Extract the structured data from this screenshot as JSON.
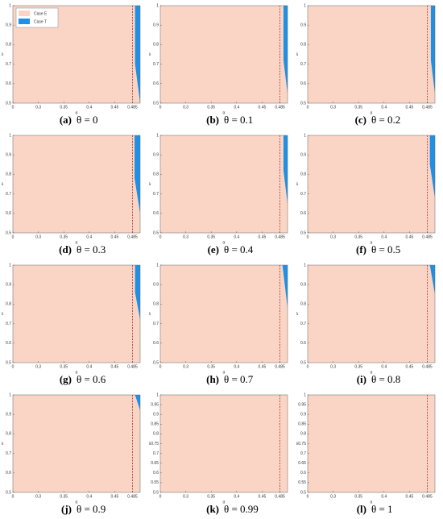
{
  "chart_data": [
    {
      "type": "region",
      "label": "(a)",
      "caption": "θ = 0",
      "xlabel": "α",
      "ylabel": "λ",
      "legend": [
        "Case E",
        "Case T"
      ],
      "region_colors": [
        "#fad5c5",
        "#1e90e6"
      ],
      "vline": 0.485,
      "vline_color": "#a0362a",
      "xlim": [
        0.25,
        0.5
      ],
      "xticks": [
        {
          "value": 0.25,
          "label": "0"
        },
        0.3,
        0.35,
        0.4,
        0.45,
        0.485
      ],
      "ylim": [
        0.5,
        1
      ],
      "yticks": [
        0.5,
        0.6,
        0.7,
        0.8,
        0.9,
        1
      ],
      "region_t": {
        "x": [
          0.49,
          0.49,
          0.5
        ],
        "y": [
          1,
          0.7,
          0.5
        ]
      }
    },
    {
      "type": "region",
      "label": "(b)",
      "caption": "θ = 0.1",
      "xlabel": "α",
      "ylabel": "λ",
      "region_colors": [
        "#fad5c5",
        "#1e90e6"
      ],
      "vline": 0.485,
      "vline_color": "#a0362a",
      "xlim": [
        0.25,
        0.5
      ],
      "xticks": [
        {
          "value": 0.25,
          "label": "0"
        },
        0.3,
        0.35,
        0.4,
        0.45,
        0.485
      ],
      "ylim": [
        0.5,
        1
      ],
      "yticks": [
        0.5,
        0.6,
        0.7,
        0.8,
        0.9,
        1
      ],
      "region_t": {
        "x": [
          0.492,
          0.492,
          0.5
        ],
        "y": [
          1,
          0.72,
          0.55
        ]
      }
    },
    {
      "type": "region",
      "label": "(c)",
      "caption": "θ = 0.2",
      "xlabel": "α",
      "ylabel": "λ",
      "region_colors": [
        "#fad5c5",
        "#1e90e6"
      ],
      "vline": 0.485,
      "vline_color": "#a0362a",
      "xlim": [
        0.25,
        0.5
      ],
      "xticks": [
        {
          "value": 0.25,
          "label": "0"
        },
        0.3,
        0.35,
        0.4,
        0.45,
        0.485
      ],
      "ylim": [
        0.5,
        1
      ],
      "yticks": [
        0.5,
        0.6,
        0.7,
        0.8,
        0.9,
        1
      ],
      "region_t": {
        "x": [
          0.492,
          0.492,
          0.5
        ],
        "y": [
          1,
          0.72,
          0.55
        ]
      }
    },
    {
      "type": "region",
      "label": "(d)",
      "caption": "θ = 0.3",
      "xlabel": "α",
      "ylabel": "λ",
      "region_colors": [
        "#fad5c5",
        "#1e90e6"
      ],
      "vline": 0.485,
      "vline_color": "#a0362a",
      "xlim": [
        0.25,
        0.5
      ],
      "xticks": [
        {
          "value": 0.25,
          "label": "0"
        },
        0.3,
        0.35,
        0.4,
        0.45,
        0.485
      ],
      "ylim": [
        0.5,
        1
      ],
      "yticks": [
        0.5,
        0.6,
        0.7,
        0.8,
        0.9,
        1
      ],
      "region_t": {
        "x": [
          0.489,
          0.489,
          0.5
        ],
        "y": [
          1,
          0.78,
          0.6
        ]
      }
    },
    {
      "type": "region",
      "label": "(e)",
      "caption": "θ = 0.4",
      "xlabel": "α",
      "ylabel": "λ",
      "region_colors": [
        "#fad5c5",
        "#1e90e6"
      ],
      "vline": 0.485,
      "vline_color": "#a0362a",
      "xlim": [
        0.25,
        0.5
      ],
      "xticks": [
        {
          "value": 0.25,
          "label": "0"
        },
        0.3,
        0.35,
        0.4,
        0.45,
        0.485
      ],
      "ylim": [
        0.5,
        1
      ],
      "yticks": [
        0.5,
        0.6,
        0.7,
        0.8,
        0.9,
        1
      ],
      "region_t": {
        "x": [
          0.492,
          0.492,
          0.5
        ],
        "y": [
          1,
          0.82,
          0.65
        ]
      }
    },
    {
      "type": "region",
      "label": "(f)",
      "caption": "θ = 0.5",
      "xlabel": "α",
      "ylabel": "λ",
      "region_colors": [
        "#fad5c5",
        "#1e90e6"
      ],
      "vline": 0.485,
      "vline_color": "#a0362a",
      "xlim": [
        0.25,
        0.5
      ],
      "xticks": [
        {
          "value": 0.25,
          "label": "0"
        },
        0.3,
        0.35,
        0.4,
        0.45,
        0.485
      ],
      "ylim": [
        0.5,
        1
      ],
      "yticks": [
        0.5,
        0.6,
        0.7,
        0.8,
        0.9,
        1
      ],
      "region_t": {
        "x": [
          0.49,
          0.49,
          0.5
        ],
        "y": [
          1,
          0.85,
          0.68
        ]
      }
    },
    {
      "type": "region",
      "label": "(g)",
      "caption": "θ = 0.6",
      "xlabel": "α",
      "ylabel": "λ",
      "region_colors": [
        "#fad5c5",
        "#1e90e6"
      ],
      "vline": 0.485,
      "vline_color": "#a0362a",
      "xlim": [
        0.25,
        0.5
      ],
      "xticks": [
        {
          "value": 0.25,
          "label": "0"
        },
        0.3,
        0.35,
        0.4,
        0.45,
        0.485
      ],
      "ylim": [
        0.5,
        1
      ],
      "yticks": [
        0.5,
        0.6,
        0.7,
        0.8,
        0.9,
        1
      ],
      "region_t": {
        "x": [
          0.49,
          0.49,
          0.5
        ],
        "y": [
          1,
          0.86,
          0.72
        ]
      }
    },
    {
      "type": "region",
      "label": "(h)",
      "caption": "θ = 0.7",
      "xlabel": "α",
      "ylabel": "λ",
      "region_colors": [
        "#fad5c5",
        "#1e90e6"
      ],
      "vline": 0.485,
      "vline_color": "#a0362a",
      "xlim": [
        0.25,
        0.5
      ],
      "xticks": [
        {
          "value": 0.25,
          "label": "0"
        },
        0.3,
        0.35,
        0.4,
        0.45,
        0.485
      ],
      "ylim": [
        0.5,
        1
      ],
      "yticks": [
        0.5,
        0.6,
        0.7,
        0.8,
        0.9,
        1
      ],
      "region_t": {
        "x": [
          0.49,
          0.5
        ],
        "y": [
          1,
          0.78
        ]
      }
    },
    {
      "type": "region",
      "label": "(i)",
      "caption": "θ = 0.8",
      "xlabel": "α",
      "ylabel": "λ",
      "region_colors": [
        "#fad5c5",
        "#1e90e6"
      ],
      "vline": 0.485,
      "vline_color": "#a0362a",
      "xlim": [
        0.25,
        0.5
      ],
      "xticks": [
        {
          "value": 0.25,
          "label": "0"
        },
        0.3,
        0.35,
        0.4,
        0.45,
        0.485
      ],
      "ylim": [
        0.5,
        1
      ],
      "yticks": [
        0.5,
        0.6,
        0.7,
        0.8,
        0.9,
        1
      ],
      "region_t": {
        "x": [
          0.49,
          0.5
        ],
        "y": [
          1,
          0.85
        ]
      }
    },
    {
      "type": "region",
      "label": "(j)",
      "caption": "θ = 0.9",
      "xlabel": "α",
      "ylabel": "λ",
      "region_colors": [
        "#fad5c5",
        "#1e90e6"
      ],
      "vline": 0.485,
      "vline_color": "#a0362a",
      "xlim": [
        0.25,
        0.5
      ],
      "xticks": [
        {
          "value": 0.25,
          "label": "0"
        },
        0.3,
        0.35,
        0.4,
        0.45,
        0.485
      ],
      "ylim": [
        0.5,
        1
      ],
      "yticks": [
        0.5,
        0.6,
        0.7,
        0.8,
        0.9,
        1
      ],
      "region_t": {
        "x": [
          0.49,
          0.5
        ],
        "y": [
          1,
          0.92
        ]
      }
    },
    {
      "type": "region",
      "label": "(k)",
      "caption": "θ = 0.99",
      "xlabel": "α",
      "ylabel": "λ",
      "region_colors": [
        "#fad5c5",
        "#1e90e6"
      ],
      "vline": 0.485,
      "vline_color": "#a0362a",
      "xlim": [
        0.25,
        0.5
      ],
      "xticks": [
        {
          "value": 0.25,
          "label": "0"
        },
        0.3,
        0.35,
        0.4,
        0.45,
        0.485
      ],
      "ylim": [
        0.5,
        1
      ],
      "yticks": [
        0.5,
        0.55,
        0.6,
        0.65,
        0.7,
        0.75,
        0.8,
        0.85,
        0.9,
        0.95,
        1
      ],
      "region_t": {
        "x": [],
        "y": []
      }
    },
    {
      "type": "region",
      "label": "(l)",
      "caption": "θ = 1",
      "xlabel": "α",
      "ylabel": "λ",
      "region_colors": [
        "#fad5c5",
        "#1e90e6"
      ],
      "vline": 0.485,
      "vline_color": "#a0362a",
      "xlim": [
        0.25,
        0.5
      ],
      "xticks": [
        {
          "value": 0.25,
          "label": "0"
        },
        0.3,
        0.35,
        0.4,
        0.45,
        0.485
      ],
      "ylim": [
        0.5,
        1
      ],
      "yticks": [
        0.5,
        0.55,
        0.6,
        0.65,
        0.7,
        0.75,
        0.8,
        0.85,
        0.9,
        0.95,
        1
      ],
      "region_t": {
        "x": [],
        "y": []
      }
    }
  ]
}
